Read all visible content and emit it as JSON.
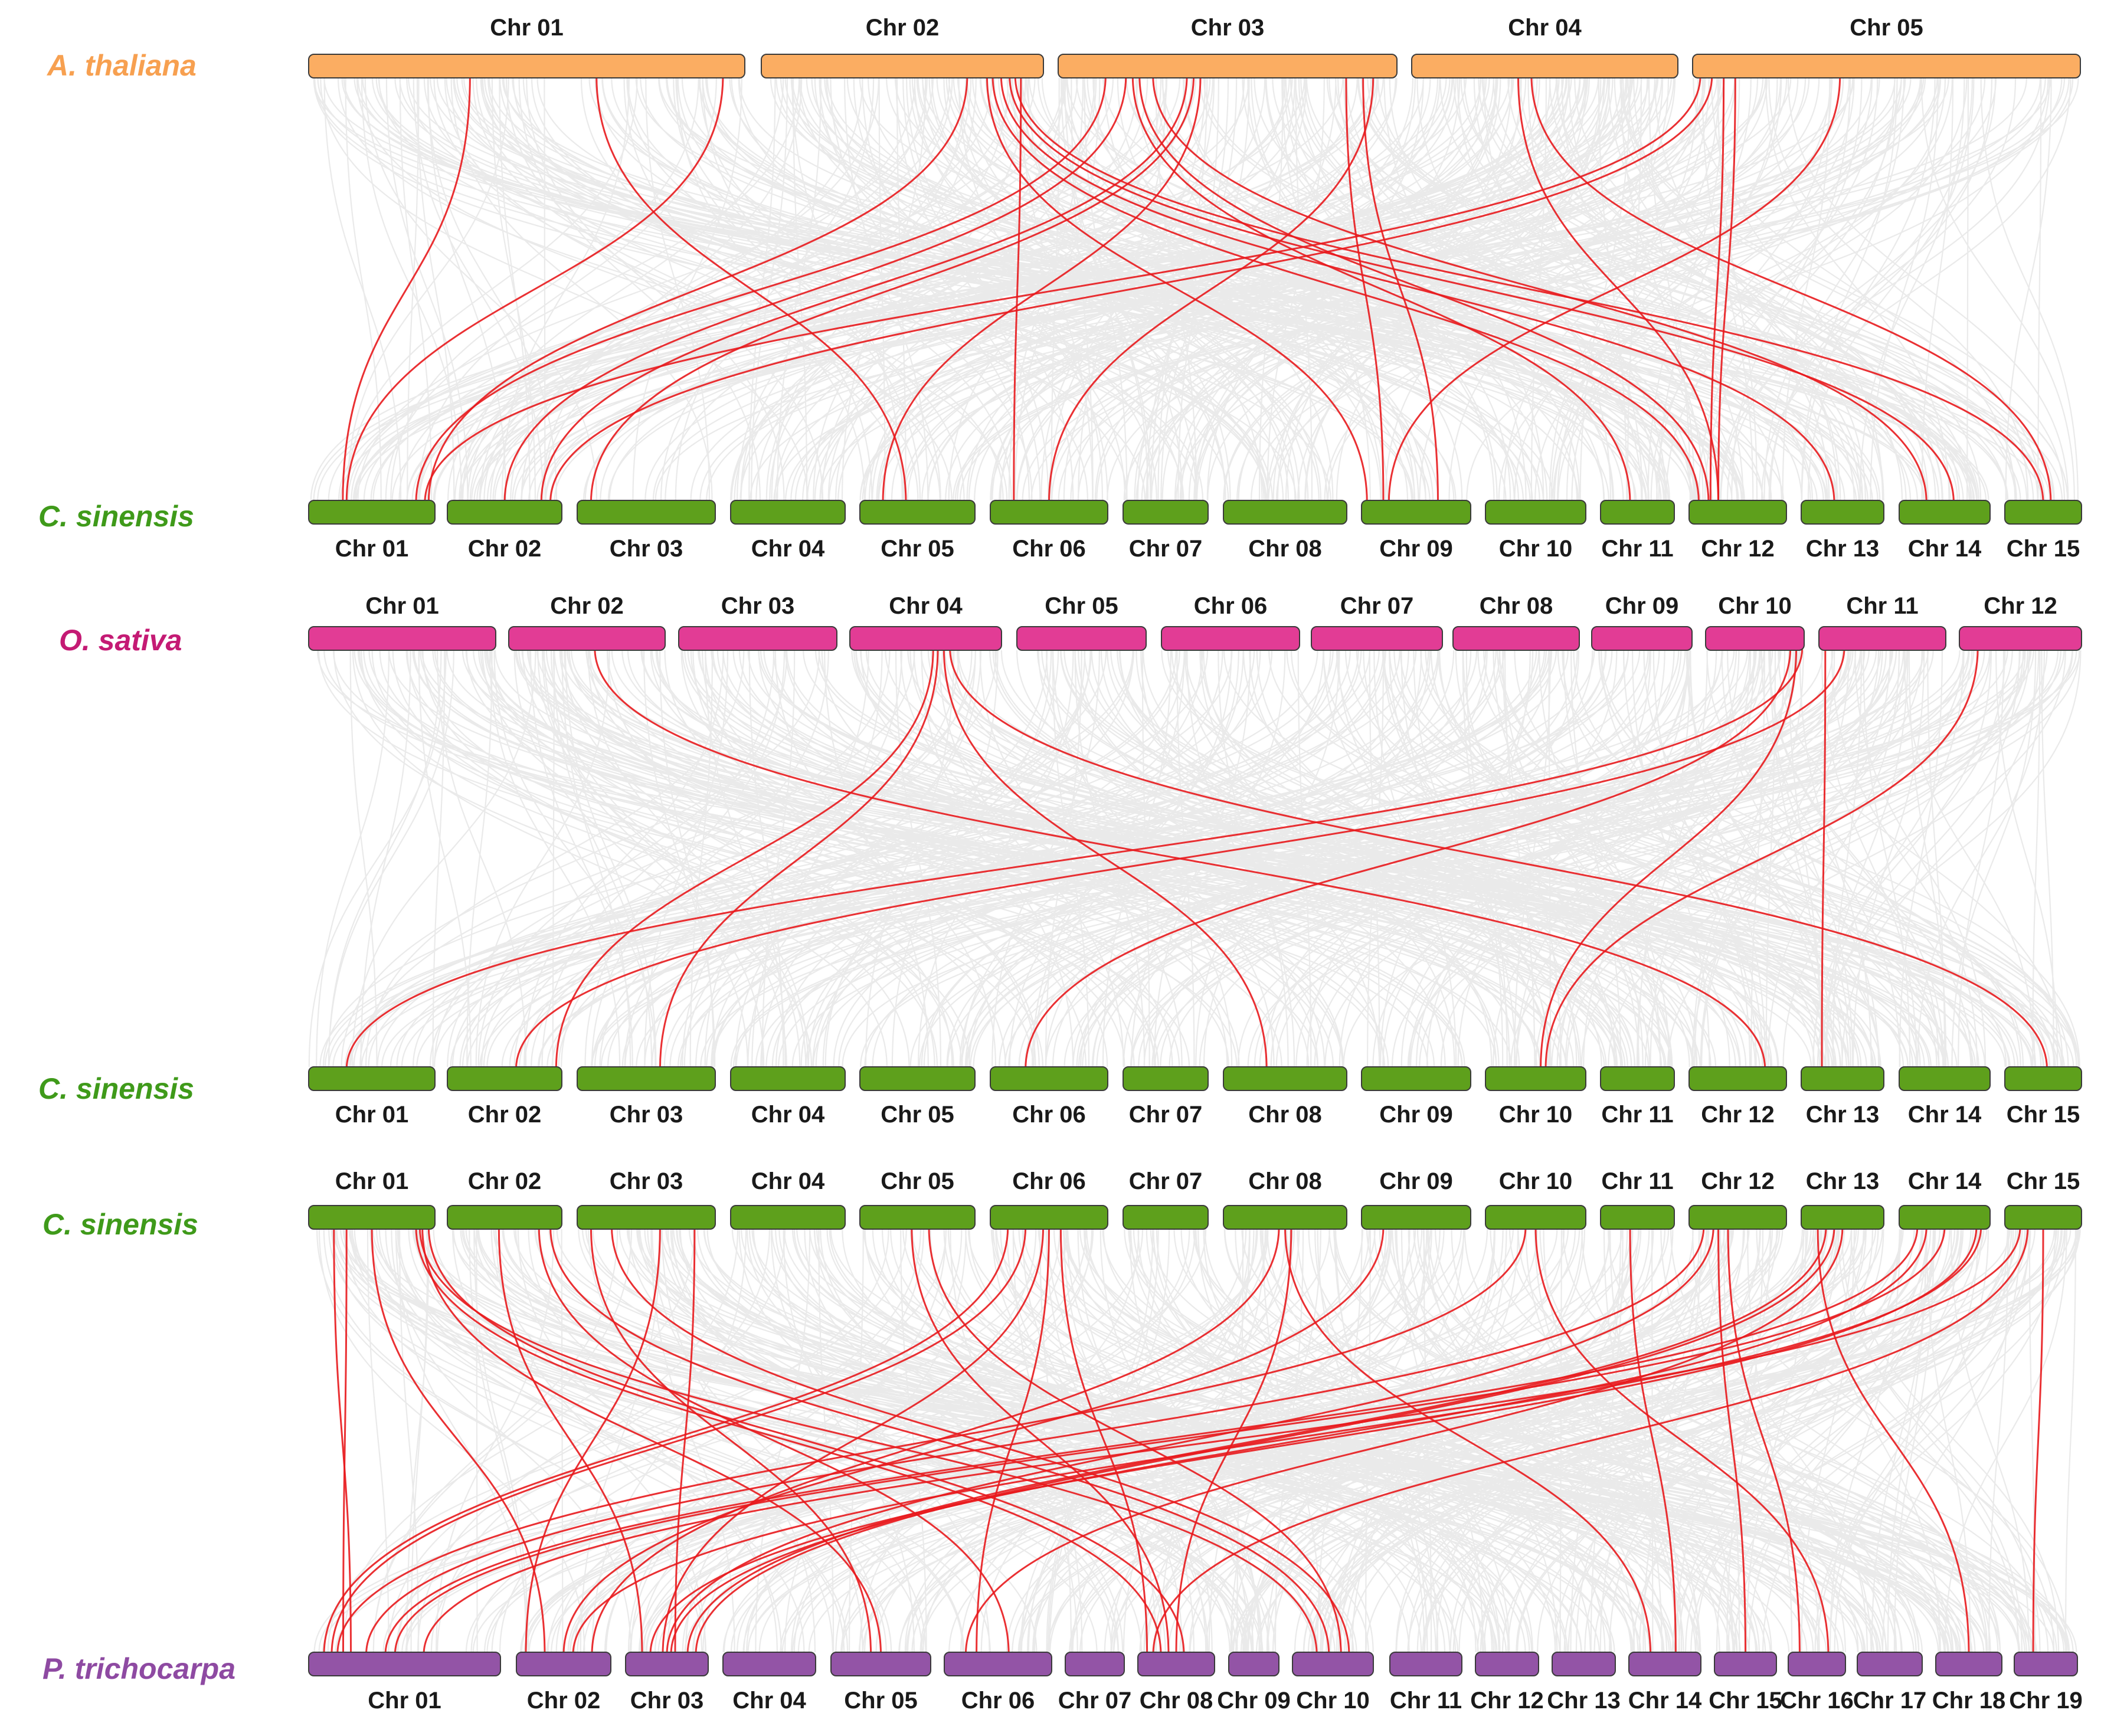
{
  "colors": {
    "background_link": "#d9d9d9",
    "highlight_link": "#e8191d",
    "a_thaliana": "#fbad62",
    "c_sinensis": "#5ea01c",
    "o_sativa": "#e23c95",
    "p_trichocarpa": "#9354a6",
    "label_a_thaliana": "#f7a050",
    "label_c_sinensis": "#3f9a1a",
    "label_o_sativa": "#c41a74",
    "label_p_trichocarpa": "#8e4aa2"
  },
  "species": {
    "a_thaliana": "A. thaliana",
    "c_sinensis": "C. sinensis",
    "o_sativa": "O. sativa",
    "p_trichocarpa": "P. trichocarpa"
  },
  "chromosomes": {
    "a_thaliana": [
      "Chr 01",
      "Chr 02",
      "Chr 03",
      "Chr 04",
      "Chr 05"
    ],
    "c_sinensis": [
      "Chr 01",
      "Chr 02",
      "Chr 03",
      "Chr 04",
      "Chr 05",
      "Chr 06",
      "Chr 07",
      "Chr 08",
      "Chr 09",
      "Chr 10",
      "Chr 11",
      "Chr 12",
      "Chr 13",
      "Chr 14",
      "Chr 15"
    ],
    "o_sativa": [
      "Chr 01",
      "Chr 02",
      "Chr 03",
      "Chr 04",
      "Chr 05",
      "Chr 06",
      "Chr 07",
      "Chr 08",
      "Chr 09",
      "Chr 10",
      "Chr 11",
      "Chr 12"
    ],
    "p_trichocarpa": [
      "Chr 01",
      "Chr 02",
      "Chr 03",
      "Chr 04",
      "Chr 05",
      "Chr 06",
      "Chr 07",
      "Chr 08",
      "Chr 09",
      "Chr 10",
      "Chr 11",
      "Chr 12",
      "Chr 13",
      "Chr 14",
      "Chr 15",
      "Chr 16",
      "Chr 17",
      "Chr 18",
      "Chr 19"
    ]
  },
  "p_trichocarpa_labels": [
    "Chr 01",
    "Chr 02",
    "Chr 03",
    "Chr 04",
    "Chr 05",
    "Chr 06",
    "Chr 07",
    "Chr 08",
    "Chr 09",
    "Chr 10",
    "Chr 11",
    "Chr 12",
    "Chr 13",
    "Chr 14",
    "Chr 15",
    "Chr 16",
    "Chr 17",
    "Chr 18",
    "Chr 19"
  ],
  "panels": [
    {
      "top_species": "a_thaliana",
      "bottom_species": "c_sinensis",
      "links": [
        [
          1,
          0.37,
          1,
          0.27
        ],
        [
          1,
          0.66,
          5,
          0.4
        ],
        [
          1,
          0.95,
          1,
          0.3
        ],
        [
          2,
          0.73,
          1,
          0.95
        ],
        [
          2,
          0.8,
          9,
          0.05
        ],
        [
          2,
          0.82,
          12,
          0.1
        ],
        [
          2,
          0.85,
          13,
          0.4
        ],
        [
          2,
          0.88,
          14,
          0.6
        ],
        [
          2,
          0.9,
          15,
          0.5
        ],
        [
          2,
          0.92,
          6,
          0.2
        ],
        [
          3,
          0.14,
          1,
          0.85
        ],
        [
          3,
          0.2,
          2,
          0.5
        ],
        [
          3,
          0.22,
          11,
          0.4
        ],
        [
          3,
          0.24,
          12,
          0.2
        ],
        [
          3,
          0.28,
          14,
          0.3
        ],
        [
          3,
          0.38,
          2,
          0.82
        ],
        [
          3,
          0.4,
          3,
          0.1
        ],
        [
          3,
          0.42,
          5,
          0.2
        ],
        [
          3,
          0.85,
          9,
          0.2
        ],
        [
          3,
          0.9,
          9,
          0.7
        ],
        [
          3,
          0.93,
          6,
          0.5
        ],
        [
          4,
          0.4,
          12,
          0.3
        ],
        [
          4,
          0.45,
          15,
          0.6
        ],
        [
          5,
          0.02,
          1,
          0.92
        ],
        [
          5,
          0.05,
          2,
          0.9
        ],
        [
          5,
          0.08,
          12,
          0.22
        ],
        [
          5,
          0.11,
          12,
          0.3
        ],
        [
          5,
          0.38,
          9,
          0.25
        ]
      ]
    },
    {
      "top_species": "o_sativa",
      "bottom_species": "c_sinensis",
      "links": [
        [
          2,
          0.55,
          12,
          0.78
        ],
        [
          4,
          0.55,
          2,
          0.95
        ],
        [
          4,
          0.58,
          3,
          0.6
        ],
        [
          4,
          0.62,
          8,
          0.35
        ],
        [
          4,
          0.66,
          15,
          0.55
        ],
        [
          10,
          0.98,
          1,
          0.3
        ],
        [
          10,
          0.92,
          10,
          0.55
        ],
        [
          10,
          0.86,
          6,
          0.3
        ],
        [
          11,
          0.05,
          13,
          0.25
        ],
        [
          12,
          0.15,
          10,
          0.6
        ],
        [
          11,
          0.2,
          2,
          0.6
        ]
      ]
    },
    {
      "top_species": "c_sinensis",
      "bottom_species": "p_trichocarpa",
      "links": [
        [
          1,
          0.3,
          1,
          0.18
        ],
        [
          1,
          0.85,
          8,
          0.3
        ],
        [
          1,
          0.88,
          10,
          0.3
        ],
        [
          1,
          0.9,
          5,
          0.5
        ],
        [
          1,
          0.95,
          8,
          0.6
        ],
        [
          1,
          0.2,
          1,
          0.22
        ],
        [
          1,
          0.5,
          2,
          0.3
        ],
        [
          2,
          0.45,
          3,
          0.2
        ],
        [
          2,
          0.8,
          6,
          0.6
        ],
        [
          2,
          0.9,
          10,
          0.45
        ],
        [
          3,
          0.1,
          5,
          0.4
        ],
        [
          3,
          0.25,
          10,
          0.7
        ],
        [
          3,
          0.6,
          2,
          0.1
        ],
        [
          3,
          0.85,
          3,
          0.6
        ],
        [
          5,
          0.45,
          8,
          0.4
        ],
        [
          5,
          0.6,
          10,
          0.6
        ],
        [
          6,
          0.15,
          1,
          0.08
        ],
        [
          6,
          0.3,
          1,
          0.12
        ],
        [
          6,
          0.45,
          3,
          0.45
        ],
        [
          6,
          0.5,
          6,
          0.3
        ],
        [
          6,
          0.6,
          8,
          0.12
        ],
        [
          8,
          0.55,
          8,
          0.5
        ],
        [
          8,
          0.5,
          14,
          0.3
        ],
        [
          8,
          0.45,
          2,
          0.8
        ],
        [
          9,
          0.2,
          2,
          0.5
        ],
        [
          10,
          0.4,
          1,
          0.15
        ],
        [
          10,
          0.5,
          16,
          0.7
        ],
        [
          11,
          0.4,
          14,
          0.65
        ],
        [
          12,
          0.15,
          1,
          0.3
        ],
        [
          12,
          0.25,
          3,
          0.5
        ],
        [
          12,
          0.3,
          15,
          0.5
        ],
        [
          12,
          0.4,
          16,
          0.2
        ],
        [
          13,
          0.3,
          3,
          0.75
        ],
        [
          13,
          0.2,
          18,
          0.5
        ],
        [
          13,
          0.4,
          3,
          0.85
        ],
        [
          13,
          0.5,
          6,
          0.2
        ],
        [
          14,
          0.2,
          1,
          0.4
        ],
        [
          14,
          0.3,
          3,
          0.55
        ],
        [
          14,
          0.5,
          1,
          0.45
        ],
        [
          14,
          0.85,
          3,
          0.3
        ],
        [
          14,
          0.9,
          2,
          0.6
        ],
        [
          15,
          0.2,
          1,
          0.6
        ],
        [
          15,
          0.3,
          8,
          0.2
        ],
        [
          15,
          0.5,
          19,
          0.3
        ]
      ]
    }
  ]
}
